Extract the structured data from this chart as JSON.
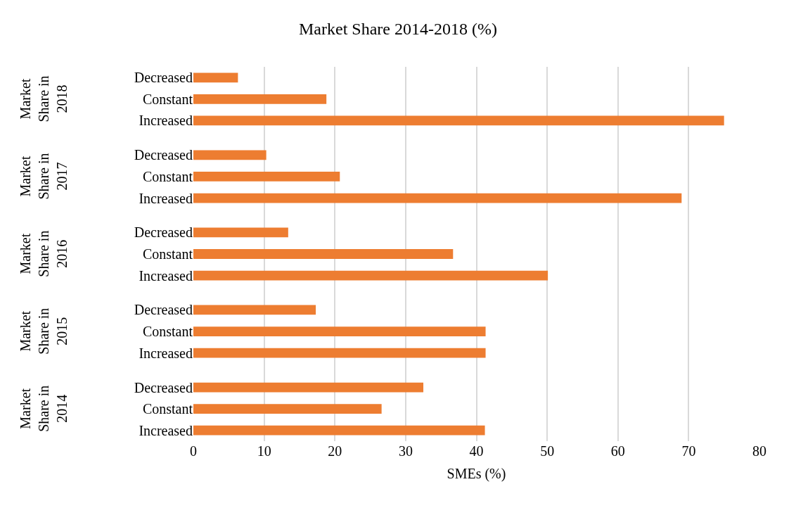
{
  "chart_data": {
    "type": "bar",
    "orientation": "horizontal",
    "title": "Market Share 2014-2018 (%)",
    "xlabel": "SMEs (%)",
    "categories": [
      "Decreased",
      "Constant",
      "Increased",
      "Decreased",
      "Constant",
      "Increased",
      "Decreased",
      "Constant",
      "Increased",
      "Decreased",
      "Constant",
      "Increased",
      "Decreased",
      "Constant",
      "Increased"
    ],
    "values": [
      6.3,
      18.8,
      75,
      10.3,
      20.7,
      69,
      13.4,
      36.7,
      50.1,
      17.3,
      41.3,
      41.3,
      32.5,
      26.6,
      41.2
    ],
    "color": "#ed7d31",
    "annotations": [
      "Market Share in 2018",
      "Market Share in 2017",
      "Market Share in 2016",
      "Market Share in 2015",
      "Market Share in 2014"
    ],
    "xlim": [
      0,
      80
    ],
    "xticks": [
      0,
      10,
      20,
      30,
      40,
      50,
      60,
      70,
      80
    ],
    "grid": "x"
  }
}
